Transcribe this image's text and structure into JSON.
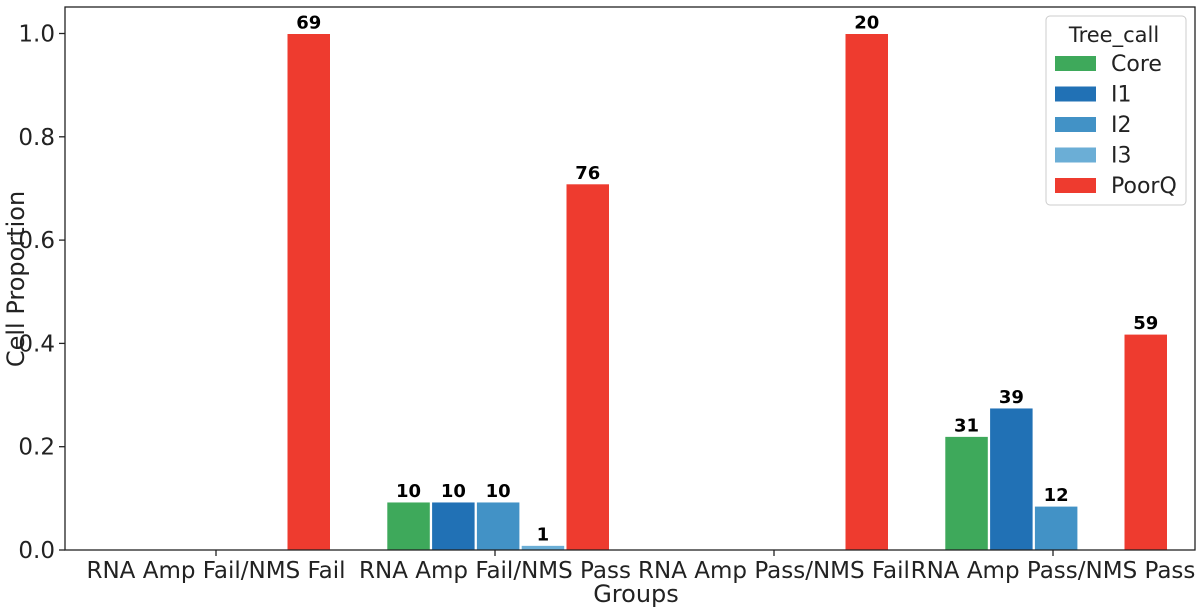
{
  "chart_data": {
    "type": "bar",
    "title": "",
    "xlabel": "Groups",
    "ylabel": "Cell Proportion",
    "ylim": [
      0,
      1.05
    ],
    "yticks": [
      "0.0",
      "0.2",
      "0.4",
      "0.6",
      "0.8",
      "1.0"
    ],
    "ytick_values": [
      0,
      0.2,
      0.4,
      0.6,
      0.8,
      1.0
    ],
    "grid": false,
    "legend_position": "top-right",
    "legend_title": "Tree_call",
    "categories": [
      "RNA Amp Fail/NMS Fail",
      "RNA Amp Fail/NMS Pass",
      "RNA Amp Pass/NMS Fail",
      "RNA Amp Pass/NMS Pass"
    ],
    "series": [
      {
        "name": "Core",
        "color": "#3ea95b",
        "values": [
          0,
          0.093,
          0,
          0.22
        ],
        "labels": [
          "",
          "10",
          "",
          "31"
        ]
      },
      {
        "name": "I1",
        "color": "#2171b5",
        "values": [
          0,
          0.093,
          0,
          0.275
        ],
        "labels": [
          "",
          "10",
          "",
          "39"
        ]
      },
      {
        "name": "I2",
        "color": "#4292c6",
        "values": [
          0,
          0.093,
          0,
          0.085
        ],
        "labels": [
          "",
          "10",
          "",
          "12"
        ]
      },
      {
        "name": "I3",
        "color": "#6baed6",
        "values": [
          0,
          0.009,
          0,
          0
        ],
        "labels": [
          "",
          "1",
          "",
          ""
        ]
      },
      {
        "name": "PoorQ",
        "color": "#ee3b2f",
        "values": [
          1.0,
          0.709,
          1.0,
          0.418
        ],
        "labels": [
          "69",
          "76",
          "20",
          "59"
        ]
      }
    ]
  }
}
